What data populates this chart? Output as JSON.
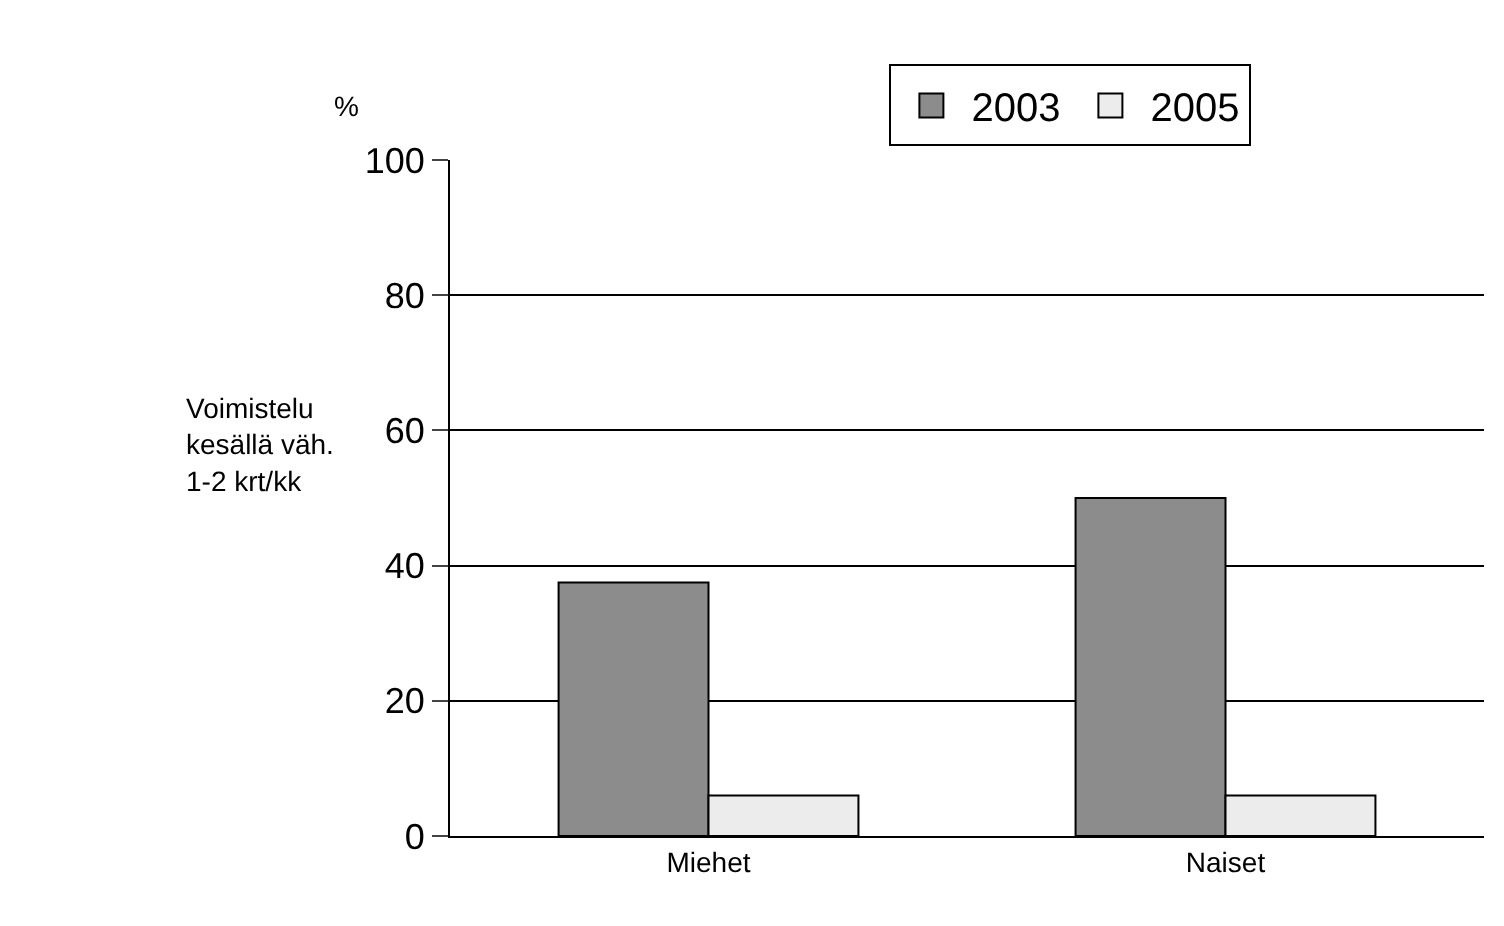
{
  "chart_data": {
    "type": "bar",
    "ylabel": "Voimistelu kesällä väh. 1-2 krt/kk",
    "annotations": [
      "%"
    ],
    "categories": [
      "Miehet",
      "Naiset"
    ],
    "series": [
      {
        "name": "2003",
        "color": "#8c8c8c",
        "values": [
          37.5,
          50
        ]
      },
      {
        "name": "2005",
        "color": "#ececec",
        "values": [
          6,
          6
        ]
      }
    ],
    "ylim": [
      0,
      100
    ],
    "yticks": [
      0,
      20,
      40,
      60,
      80,
      100
    ],
    "grid": "y",
    "legend": "top"
  }
}
